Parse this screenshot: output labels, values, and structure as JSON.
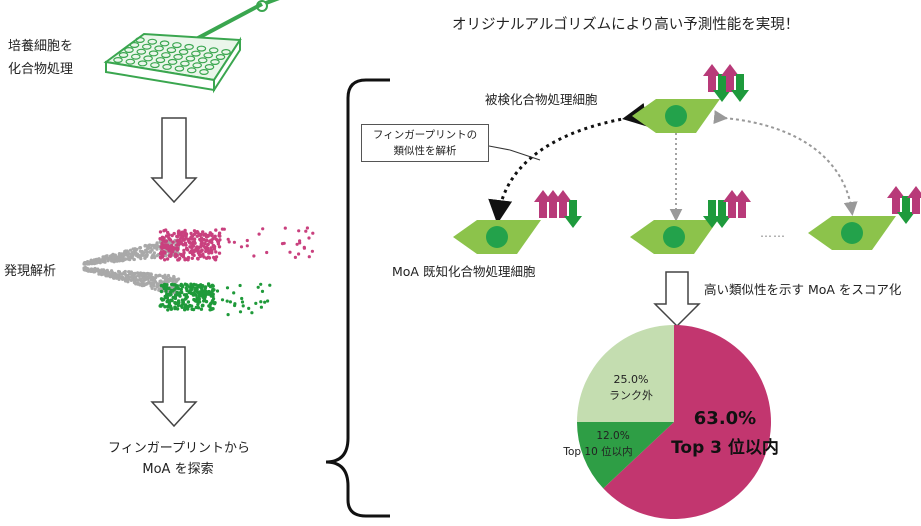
{
  "left": {
    "step1": [
      "培養細胞を",
      "化合物処理"
    ],
    "step2": "発現解析",
    "step3": [
      "フィンガープリントから",
      "MoA を探索"
    ]
  },
  "right": {
    "headline": "オリジナルアルゴリズムにより高い予測性能を実現！",
    "query_cell_label": "被検化合物処理細胞",
    "similarity_box": [
      "フィンガープリントの",
      "類似性を解析"
    ],
    "reference_cell_label": "MoA 既知化合物処理細胞",
    "score_label": "高い類似性を示す MoA をスコア化",
    "dots": "……"
  },
  "chart_data": {
    "type": "pie",
    "slices": [
      {
        "label": "Top 3 位以内",
        "value": 63.0,
        "color": "#c2366f"
      },
      {
        "label": "Top 10 位以内",
        "value": 12.0,
        "color": "#2e9e45"
      },
      {
        "label": "ランク外",
        "value": 25.0,
        "color": "#c4ddb0"
      }
    ],
    "display": {
      "top3_pct": "63.0%",
      "top3_label": "Top 3 位以内",
      "top10_pct": "12.0%",
      "top10_label": "Top 10 位以内",
      "out_pct": "25.0%",
      "out_label": "ランク外"
    }
  },
  "colors": {
    "up": "#b83a79",
    "down": "#1e9a3c",
    "cell": "#8cc34b",
    "nucleus": "#23a24b",
    "plate": "#3aa64f"
  }
}
